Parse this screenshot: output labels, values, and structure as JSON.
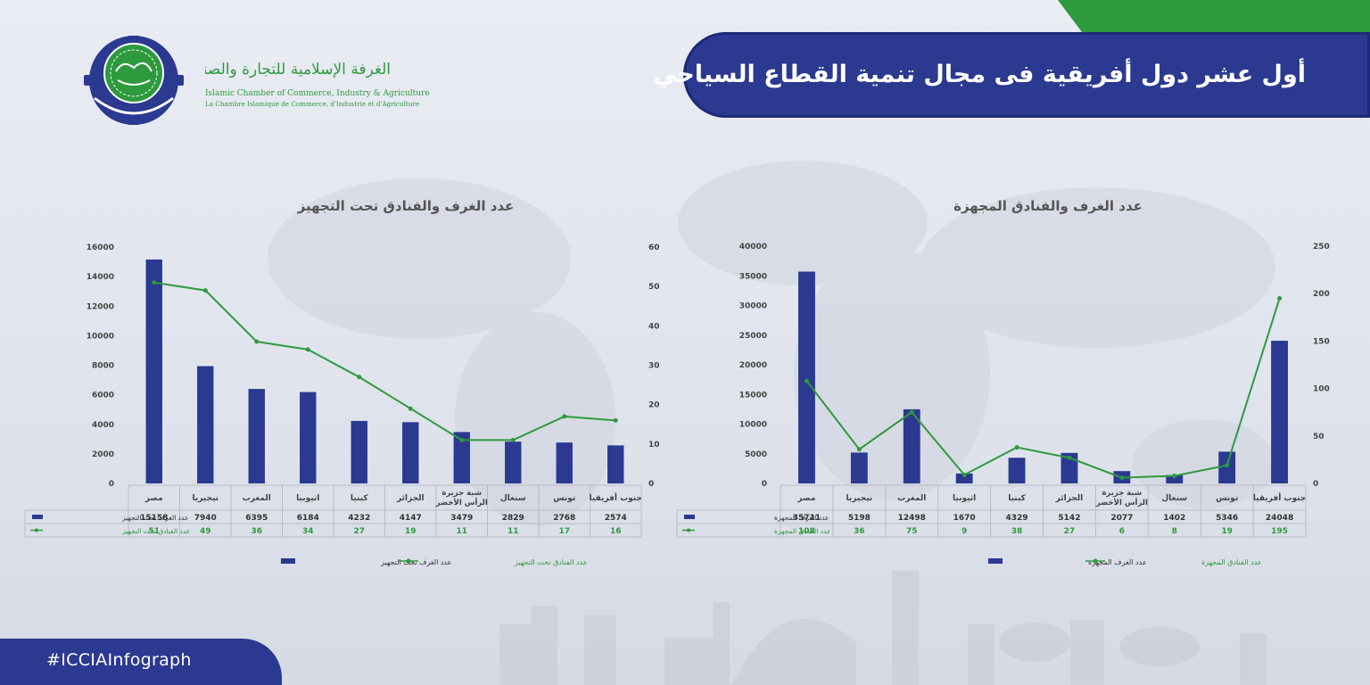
{
  "header": {
    "title": "أول عشر دول أفريقية فى مجال تنمية القطاع السياحي",
    "org_name_ar": "الغرفة الإسلامية للتجارة والصناعة والزراعة",
    "org_name_en": "Islamic Chamber of Commerce, Industry & Agriculture",
    "org_name_fr": "La Chambre Islamique de Commerce, d'Industrie et d'Agriculture"
  },
  "footer": {
    "hashtag": "#ICCIAInfograph"
  },
  "colors": {
    "bar": "#2b3990",
    "line": "#2e9a3e",
    "banner": "#2b3990",
    "accent_green": "#2e9a3e"
  },
  "icons": {
    "logo": "icci-seal-logo"
  },
  "chart_data": [
    {
      "type": "bar",
      "title": "عدد الغرف والفنادق تحت التجهيز",
      "categories": [
        "مصر",
        "نيجيريا",
        "المغرب",
        "اثيوبيا",
        "كينيا",
        "الجزائر",
        "شبة جزيرة الرأس الأخضر",
        "سنغال",
        "تونس",
        "جنوب أفريقيا"
      ],
      "series": [
        {
          "name": "عدد الغرف تحت التجهيز",
          "type": "bar",
          "axis": "left",
          "values": [
            15158,
            7940,
            6395,
            6184,
            4232,
            4147,
            3479,
            2829,
            2768,
            2574
          ]
        },
        {
          "name": "عدد الفنادق تحت التجهيز",
          "type": "line",
          "axis": "right",
          "values": [
            51,
            49,
            36,
            34,
            27,
            19,
            11,
            11,
            17,
            16
          ]
        }
      ],
      "ylim_left": [
        0,
        16000
      ],
      "yticks_left": [
        0,
        2000,
        4000,
        6000,
        8000,
        10000,
        12000,
        14000,
        16000
      ],
      "ylim_right": [
        0,
        60
      ],
      "yticks_right": [
        0,
        10,
        20,
        30,
        40,
        50,
        60
      ],
      "legend_position": "bottom"
    },
    {
      "type": "bar",
      "title": "عدد الغرف والفنادق المجهزة",
      "categories": [
        "مصر",
        "نيجيريا",
        "المغرب",
        "اثيوبيا",
        "كينيا",
        "الجزائر",
        "شبة جزيرة الرأس الأخضر",
        "سنغال",
        "تونس",
        "جنوب أفريقيا"
      ],
      "series": [
        {
          "name": "عدد الغرف المجهزة",
          "type": "bar",
          "axis": "left",
          "values": [
            35711,
            5198,
            12498,
            1670,
            4329,
            5142,
            2077,
            1402,
            5346,
            24048
          ]
        },
        {
          "name": "عدد الفنادق المجهزة",
          "type": "line",
          "axis": "right",
          "values": [
            108,
            36,
            75,
            9,
            38,
            27,
            6,
            8,
            19,
            195
          ]
        }
      ],
      "ylim_left": [
        0,
        40000
      ],
      "yticks_left": [
        0,
        5000,
        10000,
        15000,
        20000,
        25000,
        30000,
        35000,
        40000
      ],
      "ylim_right": [
        0,
        250
      ],
      "yticks_right": [
        0,
        50,
        100,
        150,
        200,
        250
      ],
      "legend_position": "bottom"
    }
  ]
}
